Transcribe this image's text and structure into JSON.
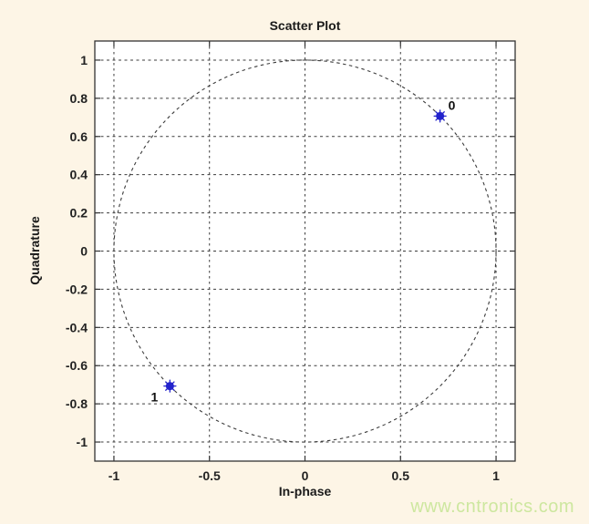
{
  "page": {
    "background_color": "#fdf5e6",
    "watermark": {
      "text": "www.cntronics.com",
      "color": "#cde79f"
    }
  },
  "chart_data": {
    "type": "scatter",
    "title": "Scatter Plot",
    "xlabel": "In-phase",
    "ylabel": "Quadrature",
    "xlim": [
      -1.1,
      1.1
    ],
    "ylim": [
      -1.1,
      1.1
    ],
    "xticks": [
      -1,
      -0.5,
      0,
      0.5,
      1
    ],
    "yticks": [
      -1,
      -0.8,
      -0.6,
      -0.4,
      -0.2,
      0,
      0.2,
      0.4,
      0.6,
      0.8,
      1
    ],
    "grid": true,
    "grid_style": "dashed",
    "legend": "none",
    "reference_circle": {
      "center": [
        0,
        0
      ],
      "radius": 1,
      "style": "dashed"
    },
    "points": [
      {
        "x": 0.707,
        "y": 0.707,
        "label": "0",
        "label_offset": [
          9,
          -7
        ],
        "label_anchor": "start"
      },
      {
        "x": -0.707,
        "y": -0.707,
        "label": "1",
        "label_offset": [
          -13,
          17
        ],
        "label_anchor": "end"
      }
    ],
    "marker": {
      "shape": "asterisk-dot",
      "size": 9,
      "color": "#2222cc"
    },
    "colors": {
      "plot_background": "#ffffff",
      "axis": "#333333",
      "grid": "#3c3c3c",
      "tick_label": "#222222",
      "point_label": "#111111"
    }
  }
}
